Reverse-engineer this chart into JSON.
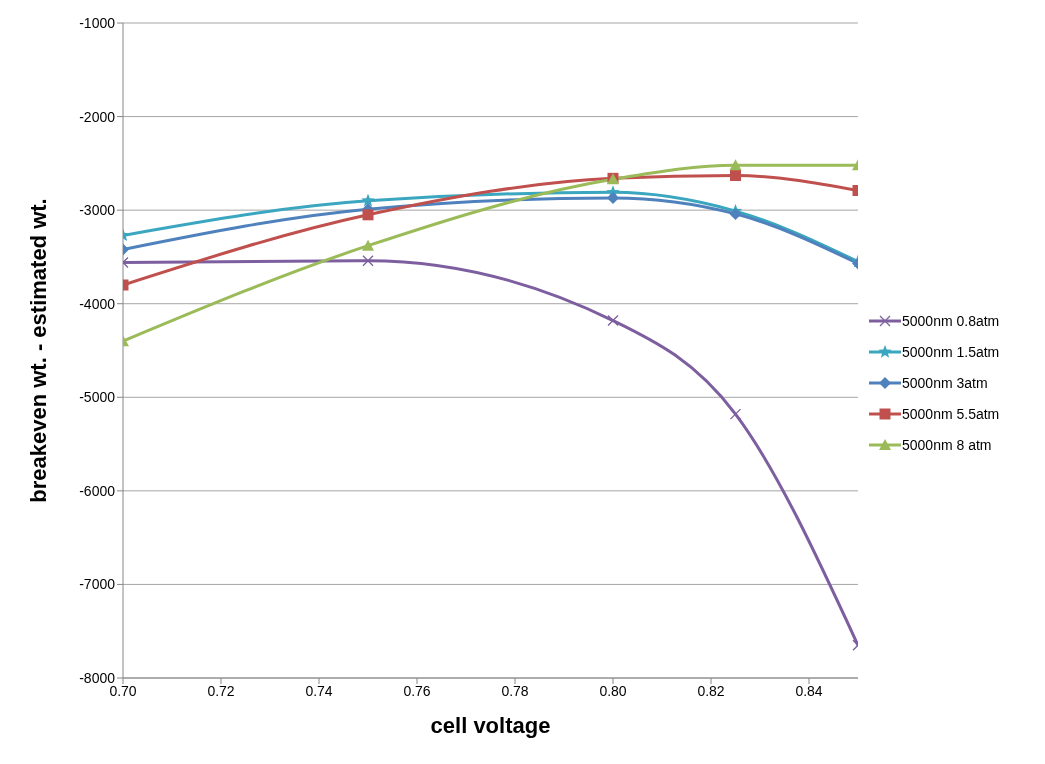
{
  "chart_data": {
    "type": "line",
    "xlabel": "cell voltage",
    "ylabel": "breakeven wt. - estimated wt.",
    "x": [
      0.7,
      0.75,
      0.8,
      0.825,
      0.85
    ],
    "series": [
      {
        "name": "5000nm 0.8atm",
        "color": "#7d5fa0",
        "marker": "cross",
        "values": [
          -3560,
          -3540,
          -4180,
          -5180,
          -7650
        ]
      },
      {
        "name": "5000nm 1.5atm",
        "color": "#3ba6bf",
        "marker": "star",
        "values": [
          -3270,
          -2900,
          -2810,
          -3010,
          -3550
        ]
      },
      {
        "name": "5000nm 3atm",
        "color": "#4f81bd",
        "marker": "diamond",
        "values": [
          -3420,
          -2990,
          -2870,
          -3040,
          -3570
        ]
      },
      {
        "name": "5000nm 5.5atm",
        "color": "#c0504d",
        "marker": "square",
        "values": [
          -3800,
          -3050,
          -2660,
          -2630,
          -2790
        ]
      },
      {
        "name": "5000nm 8 atm",
        "color": "#9bbb59",
        "marker": "triangle",
        "values": [
          -4400,
          -3380,
          -2670,
          -2520,
          -2520
        ]
      }
    ],
    "xlim": [
      0.7,
      0.85
    ],
    "xticks": [
      {
        "value": 0.7,
        "label": "0.70"
      },
      {
        "value": 0.72,
        "label": "0.72"
      },
      {
        "value": 0.74,
        "label": "0.74"
      },
      {
        "value": 0.76,
        "label": "0.76"
      },
      {
        "value": 0.78,
        "label": "0.78"
      },
      {
        "value": 0.8,
        "label": "0.80"
      },
      {
        "value": 0.82,
        "label": "0.82"
      },
      {
        "value": 0.84,
        "label": "0.84"
      }
    ],
    "ylim": [
      -8000,
      -1000
    ],
    "yticks": [
      -8000,
      -7000,
      -6000,
      -5000,
      -4000,
      -3000,
      -2000,
      -1000
    ],
    "grid": "y",
    "legend": "right",
    "line_style": "solid"
  }
}
